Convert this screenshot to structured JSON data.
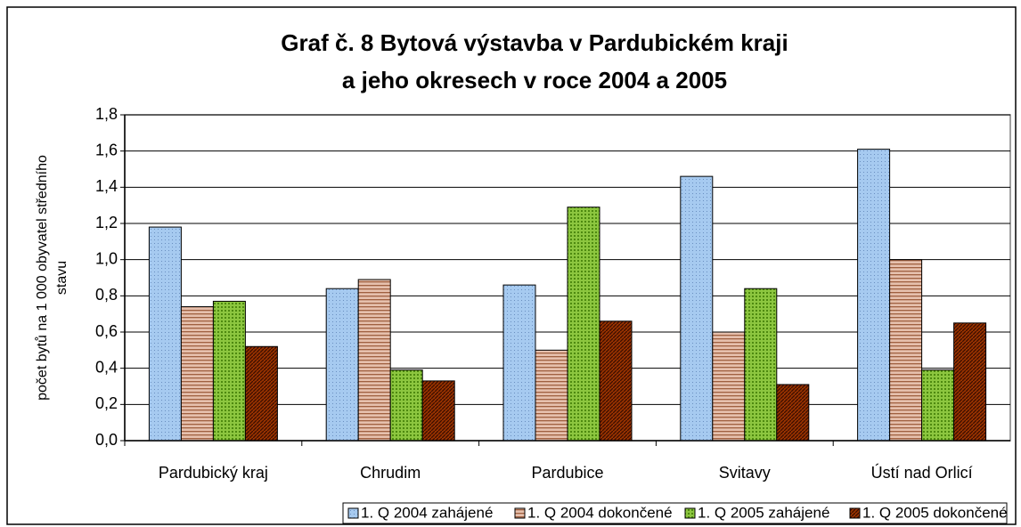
{
  "chart_data": {
    "type": "bar",
    "title": [
      "Graf č. 8 Bytová výstavba v Pardubickém kraji",
      "a jeho okresech v roce 2004 a 2005"
    ],
    "y_label": [
      "počet bytů na 1 000 obyvatel středního",
      "stavu"
    ],
    "categories": [
      "Pardubický kraj",
      "Chrudim",
      "Pardubice",
      "Svitavy",
      "Ústí nad Orlicí"
    ],
    "series": [
      {
        "name": "1. Q 2004 zahájené",
        "color": "#a6caf0",
        "values": [
          1.18,
          0.84,
          0.86,
          1.46,
          1.61
        ]
      },
      {
        "name": "1. Q 2004 dokončené",
        "color": "#d9a68c",
        "values": [
          0.74,
          0.89,
          0.5,
          0.6,
          1.0
        ]
      },
      {
        "name": "1. Q 2005 zahájené",
        "color": "#8cc63f",
        "values": [
          0.77,
          0.39,
          1.29,
          0.84,
          0.39
        ]
      },
      {
        "name": "1. Q 2005 dokončené",
        "color": "#993300",
        "values": [
          0.52,
          0.33,
          0.66,
          0.31,
          0.65
        ]
      }
    ],
    "ylim": [
      0,
      1.8
    ],
    "yticks": [
      {
        "value": 0,
        "label": "0,0"
      },
      {
        "value": 0.2,
        "label": "0,2"
      },
      {
        "value": 0.4,
        "label": "0,4"
      },
      {
        "value": 0.6,
        "label": "0,6"
      },
      {
        "value": 0.8,
        "label": "0,8"
      },
      {
        "value": 1.0,
        "label": "1,0"
      },
      {
        "value": 1.2,
        "label": "1,2"
      },
      {
        "value": 1.4,
        "label": "1,4"
      },
      {
        "value": 1.6,
        "label": "1,6"
      },
      {
        "value": 1.8,
        "label": "1,8"
      }
    ],
    "grid": true,
    "legend": "bottom"
  }
}
